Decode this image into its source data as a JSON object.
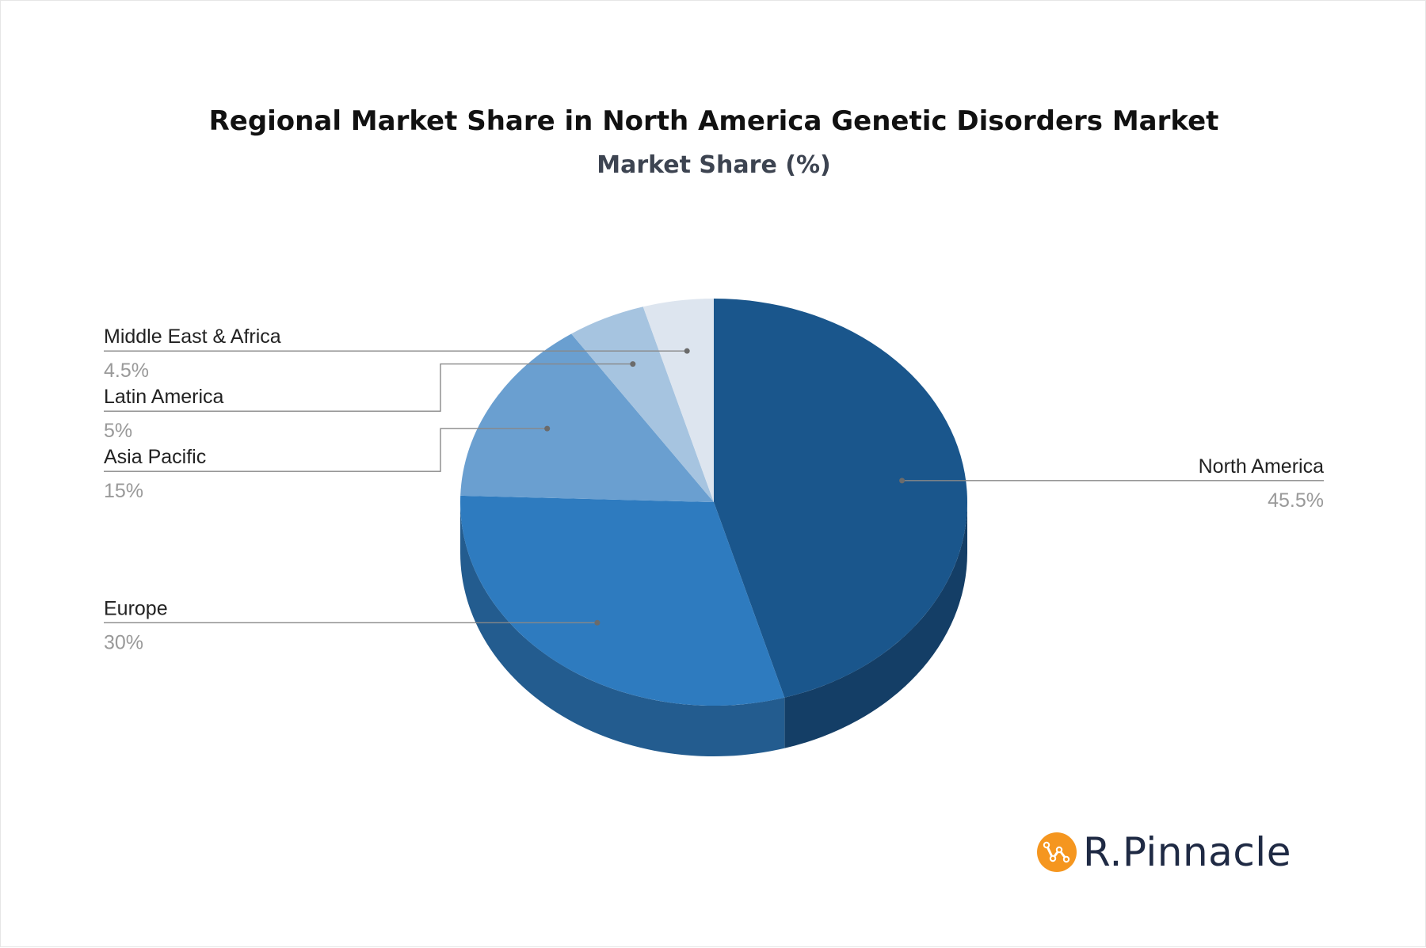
{
  "chart_data": {
    "type": "pie",
    "style": "3d",
    "title": "Regional Market Share in North America Genetic Disorders Market",
    "subtitle": "Market Share (%)",
    "slices": [
      {
        "label": "North America",
        "value": 45.5,
        "value_label": "45.5%",
        "color": "#1a568c",
        "side_color": "#143e66"
      },
      {
        "label": "Europe",
        "value": 30,
        "value_label": "30%",
        "color": "#2e7bbf",
        "side_color": "#235c8f"
      },
      {
        "label": "Asia Pacific",
        "value": 15,
        "value_label": "15%",
        "color": "#6a9fd0",
        "side_color": "#4f779c"
      },
      {
        "label": "Latin America",
        "value": 5,
        "value_label": "5%",
        "color": "#a6c4e0",
        "side_color": "#7d93a8"
      },
      {
        "label": "Middle East & Africa",
        "value": 4.5,
        "value_label": "4.5%",
        "color": "#dde5ef",
        "side_color": "#a6acb3"
      }
    ],
    "label_color": "#222222",
    "value_color": "#999999",
    "leader_color": "#888888"
  },
  "brand": {
    "name": "R.Pinnacle",
    "logo_color": "#f5961f"
  }
}
